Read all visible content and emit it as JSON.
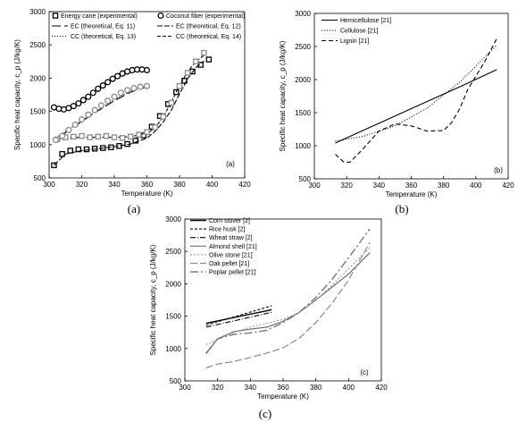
{
  "panels": [
    {
      "id": "a",
      "caption": "(a)",
      "tag": "(a)",
      "chart_data": {
        "type": "scatter",
        "xlabel": "Temperature (K)",
        "ylabel": "Specific heat capacity, c_p (J/kg/K)",
        "xlim": [
          300,
          420
        ],
        "ylim": [
          500,
          3000
        ],
        "xticks": [
          300,
          320,
          340,
          360,
          380,
          400,
          420
        ],
        "yticks": [
          500,
          1000,
          1500,
          2000,
          2500,
          3000
        ],
        "grid": false,
        "legend": "top",
        "series": [
          {
            "name": "Energy cane (experimental)",
            "kind": "marker",
            "marker": "square",
            "x": [
              303,
              308,
              313,
              318,
              323,
              328,
              333,
              338,
              343,
              348,
              353,
              358,
              363,
              368,
              373,
              378,
              383,
              388,
              393,
              398
            ],
            "y": [
              690,
              860,
              910,
              930,
              930,
              940,
              950,
              960,
              980,
              1010,
              1060,
              1140,
              1270,
              1430,
              1610,
              1790,
              1960,
              2100,
              2200,
              2280
            ]
          },
          {
            "name": "Coconut fiber (experimental)",
            "kind": "marker",
            "marker": "circle",
            "x": [
              303,
              306,
              309,
              312,
              315,
              318,
              321,
              324,
              327,
              330,
              333,
              336,
              339,
              342,
              345,
              348,
              351,
              354,
              357,
              360
            ],
            "y": [
              1560,
              1540,
              1530,
              1550,
              1580,
              1620,
              1670,
              1720,
              1780,
              1840,
              1890,
              1940,
              1990,
              2030,
              2070,
              2100,
              2120,
              2130,
              2130,
              2120
            ]
          },
          {
            "name": "EC (theoretical, Eq. 11)",
            "kind": "line",
            "dash": "10 4",
            "x": [
              303,
              310,
              320,
              330,
              340,
              350,
              360
            ],
            "y": [
              1050,
              1180,
              1350,
              1510,
              1660,
              1790,
              1870
            ]
          },
          {
            "name": "EC (theoretical, Eq. 12)",
            "kind": "line",
            "dash": "6 2",
            "x": [
              303,
              310,
              320,
              330,
              340,
              350,
              360,
              365,
              370,
              375,
              380,
              385,
              390,
              395
            ],
            "y": [
              690,
              860,
              910,
              940,
              970,
              1010,
              1100,
              1200,
              1340,
              1520,
              1760,
              1990,
              2160,
              2260
            ]
          },
          {
            "name": "CC (theoretical, Eq. 13)",
            "kind": "line",
            "dash": "1 2",
            "x": [
              303,
              310,
              320,
              330,
              340,
              350,
              360
            ],
            "y": [
              1080,
              1200,
              1360,
              1520,
              1680,
              1800,
              1880
            ]
          },
          {
            "name": "CC (theoretical, Eq. 14)",
            "kind": "line",
            "dash": "4 2",
            "x": [
              303,
              310,
              320,
              330,
              340,
              350,
              360,
              365,
              370,
              375,
              380,
              385,
              390,
              396
            ],
            "y": [
              1080,
              1100,
              1110,
              1110,
              1110,
              1120,
              1170,
              1250,
              1420,
              1640,
              1890,
              2100,
              2250,
              2360
            ]
          },
          {
            "name": "",
            "kind": "marker",
            "marker": "square-grey",
            "x": [
              305,
              310,
              315,
              320,
              325,
              330,
              335,
              340,
              345,
              350,
              355,
              360,
              365,
              370,
              375,
              380,
              385,
              390,
              395
            ],
            "y": [
              1080,
              1110,
              1120,
              1130,
              1110,
              1120,
              1130,
              1110,
              1100,
              1120,
              1150,
              1190,
              1260,
              1420,
              1630,
              1880,
              2080,
              2250,
              2380
            ]
          },
          {
            "name": "",
            "kind": "marker",
            "marker": "circle-grey",
            "x": [
              304,
              308,
              312,
              316,
              320,
              324,
              328,
              332,
              336,
              340,
              344,
              348,
              352,
              356,
              360
            ],
            "y": [
              1070,
              1130,
              1220,
              1300,
              1380,
              1450,
              1520,
              1590,
              1660,
              1720,
              1780,
              1820,
              1850,
              1870,
              1880
            ]
          }
        ]
      }
    },
    {
      "id": "b",
      "caption": "(b)",
      "tag": "(b)",
      "chart_data": {
        "type": "line",
        "xlabel": "Temperature (K)",
        "ylabel": "Specific heat capacity, c_p (J/kg/K)",
        "xlim": [
          300,
          420
        ],
        "ylim": [
          500,
          3000
        ],
        "xticks": [
          300,
          320,
          340,
          360,
          380,
          400,
          420
        ],
        "yticks": [
          500,
          1000,
          1500,
          2000,
          2500,
          3000
        ],
        "grid": false,
        "legend": "top-left",
        "series": [
          {
            "name": "Hemicellulose [21]",
            "dash": "",
            "x": [
              313,
              330,
              350,
              370,
              390,
              413
            ],
            "y": [
              1040,
              1230,
              1450,
              1670,
              1890,
              2150
            ]
          },
          {
            "name": "Cellulose [21]",
            "dash": "1 2",
            "x": [
              313,
              330,
              350,
              370,
              390,
              413
            ],
            "y": [
              1070,
              1140,
              1300,
              1570,
              1960,
              2520
            ]
          },
          {
            "name": "Lignin [21]",
            "dash": "5 3",
            "x": [
              313,
              318,
              322,
              330,
              340,
              350,
              360,
              370,
              380,
              385,
              390,
              395,
              400,
              405,
              410,
              413
            ],
            "y": [
              870,
              760,
              750,
              950,
              1220,
              1330,
              1300,
              1220,
              1230,
              1350,
              1560,
              1850,
              2050,
              2250,
              2480,
              2620
            ]
          }
        ]
      }
    },
    {
      "id": "c",
      "caption": "(c)",
      "tag": "(c)",
      "chart_data": {
        "type": "line",
        "xlabel": "Temperature (K)",
        "ylabel": "Specific heat capacity, c_p (J/kg/K)",
        "xlim": [
          300,
          420
        ],
        "ylim": [
          500,
          3000
        ],
        "xticks": [
          300,
          320,
          340,
          360,
          380,
          400,
          420
        ],
        "yticks": [
          500,
          1000,
          1500,
          2000,
          2500,
          3000
        ],
        "grid": false,
        "legend": "top-left",
        "series": [
          {
            "name": "Corn stover [2]",
            "color": "#000000",
            "dash": "",
            "width": 1.4,
            "x": [
              313,
              353
            ],
            "y": [
              1390,
              1600
            ]
          },
          {
            "name": "Rice husk [2]",
            "color": "#000000",
            "dash": "3 2",
            "width": 1.1,
            "x": [
              313,
              353
            ],
            "y": [
              1360,
              1660
            ]
          },
          {
            "name": "Wheat straw [2]",
            "color": "#000000",
            "dash": "6 2 1 2",
            "width": 1.1,
            "x": [
              313,
              353
            ],
            "y": [
              1330,
              1560
            ]
          },
          {
            "name": "Almond shell [21]",
            "color": "#6f6f6f",
            "dash": "",
            "width": 1.2,
            "x": [
              313,
              320,
              330,
              340,
              350,
              360,
              370,
              380,
              390,
              400,
              413
            ],
            "y": [
              920,
              1150,
              1260,
              1300,
              1330,
              1420,
              1560,
              1750,
              1950,
              2150,
              2480
            ]
          },
          {
            "name": "Olive stone [21]",
            "color": "#9a9a9a",
            "dash": "2 2",
            "width": 1.1,
            "x": [
              313,
              320,
              330,
              340,
              350,
              360,
              370,
              380,
              390,
              400,
              413
            ],
            "y": [
              1060,
              1140,
              1250,
              1330,
              1390,
              1450,
              1560,
              1740,
              1980,
              2230,
              2560
            ]
          },
          {
            "name": "Oak pellet [21]",
            "color": "#8a8a8a",
            "dash": "8 3",
            "width": 1.2,
            "x": [
              313,
              320,
              330,
              340,
              350,
              360,
              370,
              380,
              390,
              400,
              413
            ],
            "y": [
              700,
              760,
              800,
              860,
              930,
              1010,
              1160,
              1400,
              1700,
              2060,
              2640
            ]
          },
          {
            "name": "Poplar pellet [21]",
            "color": "#777777",
            "dash": "9 3 2 3",
            "width": 1.4,
            "x": [
              313,
              320,
              330,
              340,
              350,
              360,
              370,
              380,
              390,
              400,
              413
            ],
            "y": [
              930,
              1150,
              1220,
              1240,
              1280,
              1400,
              1560,
              1790,
              2070,
              2400,
              2850
            ]
          }
        ]
      }
    }
  ]
}
